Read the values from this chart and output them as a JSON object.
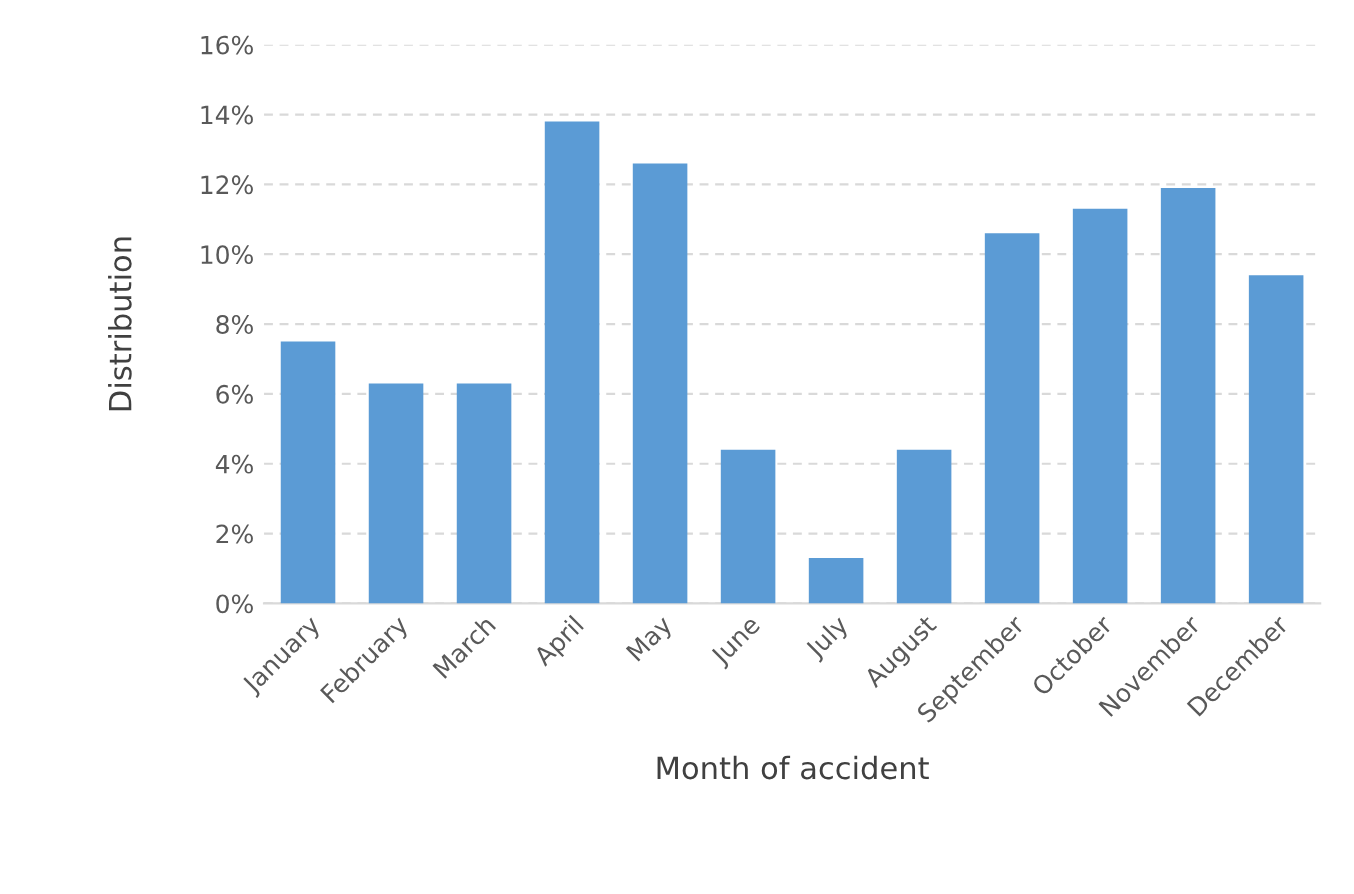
{
  "chart_data": {
    "type": "bar",
    "categories": [
      "January",
      "February",
      "March",
      "April",
      "May",
      "June",
      "July",
      "August",
      "September",
      "October",
      "November",
      "December"
    ],
    "values": [
      7.5,
      6.3,
      6.3,
      13.8,
      12.6,
      4.4,
      1.3,
      4.4,
      10.6,
      11.3,
      11.9,
      9.4
    ],
    "color": "#5b9bd5",
    "xlabel": "Month of accident",
    "ylabel": "Distribution",
    "ylim": [
      0,
      16
    ],
    "yticks": [
      {
        "value": 0,
        "label": "0%"
      },
      {
        "value": 2,
        "label": "2%"
      },
      {
        "value": 4,
        "label": "4%"
      },
      {
        "value": 6,
        "label": "6%"
      },
      {
        "value": 8,
        "label": "8%"
      },
      {
        "value": 10,
        "label": "10%"
      },
      {
        "value": 12,
        "label": "12%"
      },
      {
        "value": 14,
        "label": "14%"
      },
      {
        "value": 16,
        "label": "16%"
      }
    ],
    "grid": "y"
  }
}
